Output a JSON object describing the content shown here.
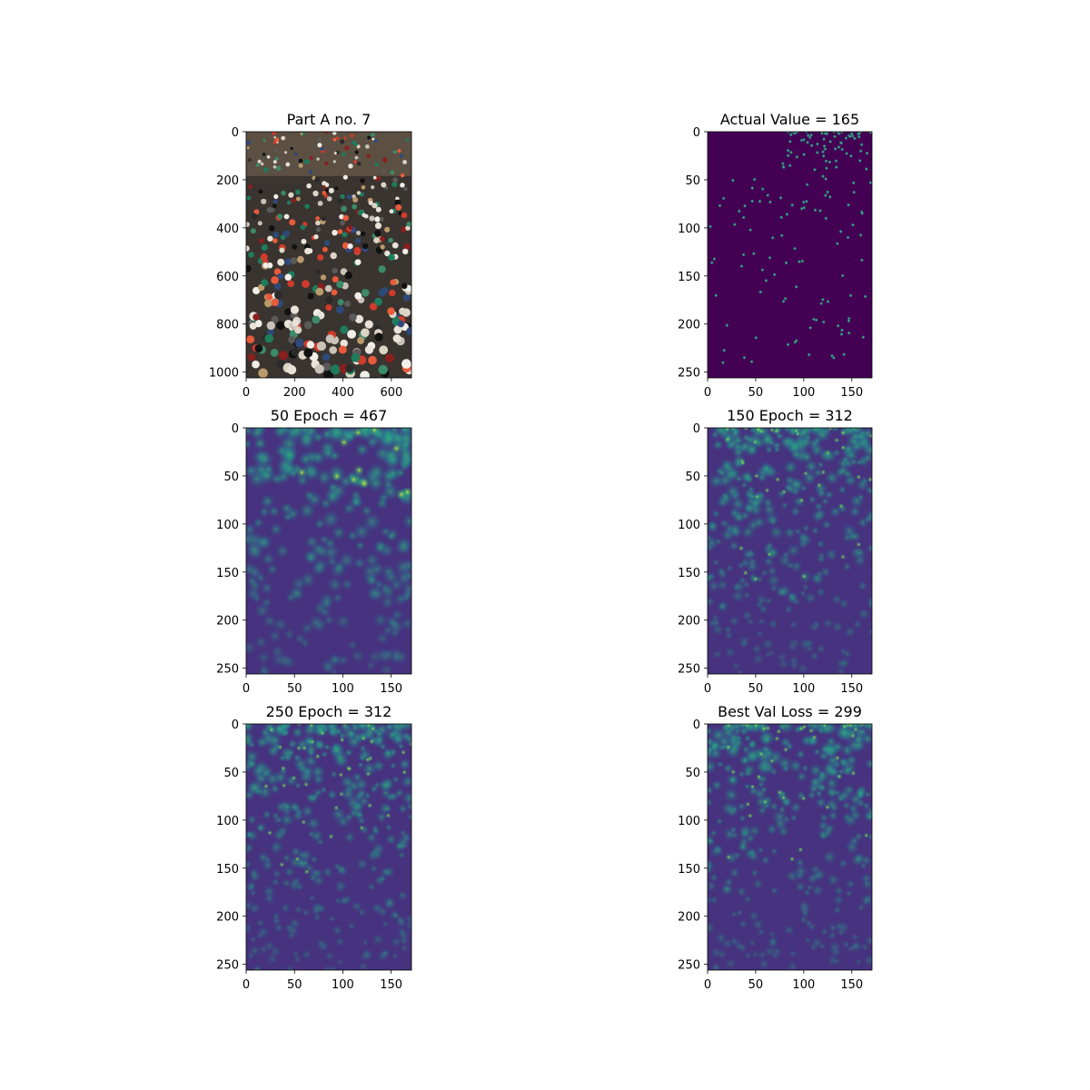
{
  "colors": {
    "background": "#ffffff",
    "viridis_low": "#440154",
    "viridis_mid": "#21918c",
    "viridis_high": "#fde725"
  },
  "chart_data": [
    {
      "type": "heatmap",
      "title": "Part A no. 7",
      "image_kind": "photo",
      "image_content": "crowd-of-motorbike-riders",
      "xlim": [
        0,
        683
      ],
      "ylim": [
        1024,
        0
      ],
      "xticks": [
        0,
        200,
        400,
        600
      ],
      "yticks": [
        0,
        200,
        400,
        600,
        800,
        1000
      ]
    },
    {
      "type": "heatmap",
      "title": "Actual Value = 165",
      "count": 165,
      "image_kind": "point-annotations",
      "xlim": [
        0,
        171
      ],
      "ylim": [
        256,
        0
      ],
      "xticks": [
        0,
        50,
        100,
        150
      ],
      "yticks": [
        0,
        50,
        100,
        150,
        200,
        250
      ]
    },
    {
      "type": "heatmap",
      "title": "50 Epoch = 467",
      "count": 467,
      "epoch": 50,
      "image_kind": "density-map",
      "xlim": [
        0,
        171
      ],
      "ylim": [
        256,
        0
      ],
      "xticks": [
        0,
        50,
        100,
        150
      ],
      "yticks": [
        0,
        50,
        100,
        150,
        200,
        250
      ]
    },
    {
      "type": "heatmap",
      "title": "150 Epoch = 312",
      "count": 312,
      "epoch": 150,
      "image_kind": "density-map",
      "xlim": [
        0,
        171
      ],
      "ylim": [
        256,
        0
      ],
      "xticks": [
        0,
        50,
        100,
        150
      ],
      "yticks": [
        0,
        50,
        100,
        150,
        200,
        250
      ]
    },
    {
      "type": "heatmap",
      "title": "250 Epoch = 312",
      "count": 312,
      "epoch": 250,
      "image_kind": "density-map",
      "xlim": [
        0,
        171
      ],
      "ylim": [
        256,
        0
      ],
      "xticks": [
        0,
        50,
        100,
        150
      ],
      "yticks": [
        0,
        50,
        100,
        150,
        200,
        250
      ]
    },
    {
      "type": "heatmap",
      "title": "Best Val Loss = 299",
      "count": 299,
      "image_kind": "density-map",
      "xlim": [
        0,
        171
      ],
      "ylim": [
        256,
        0
      ],
      "xticks": [
        0,
        50,
        100,
        150
      ],
      "yticks": [
        0,
        50,
        100,
        150,
        200,
        250
      ]
    }
  ]
}
